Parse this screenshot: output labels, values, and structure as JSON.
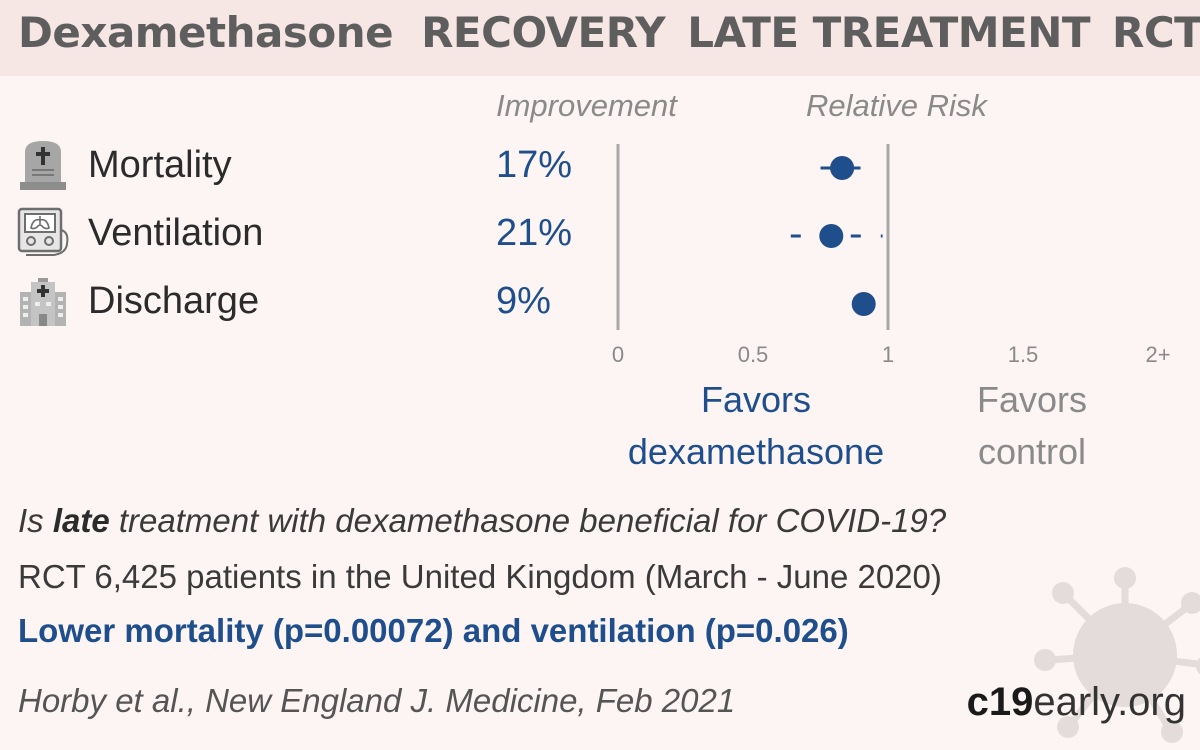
{
  "header": {
    "drug": "Dexamethasone",
    "trial": "RECOVERY",
    "stage": "LATE TREATMENT",
    "design": "RCT"
  },
  "columns": {
    "improvement": "Improvement",
    "relative_risk": "Relative Risk"
  },
  "outcomes": [
    {
      "label": "Mortality",
      "improvement": "17%",
      "icon": "gravestone-icon"
    },
    {
      "label": "Ventilation",
      "improvement": "21%",
      "icon": "ventilator-icon"
    },
    {
      "label": "Discharge",
      "improvement": "9%",
      "icon": "hospital-icon"
    }
  ],
  "chart_data": {
    "type": "scatter",
    "xlabel": "",
    "ylabel": "",
    "xlim": [
      0,
      2
    ],
    "x_ticks": [
      "0",
      "0.5",
      "1",
      "1.5",
      "2+"
    ],
    "x_tick_values": [
      0,
      0.5,
      1,
      1.5,
      2
    ],
    "reference_lines": [
      0,
      1
    ],
    "categories": [
      "Mortality",
      "Ventilation",
      "Discharge"
    ],
    "points": [
      {
        "category": "Mortality",
        "rr": 0.83,
        "ci_low": 0.75,
        "ci_high": 0.93
      },
      {
        "category": "Ventilation",
        "rr": 0.79,
        "ci_low": 0.64,
        "ci_high": 0.98
      },
      {
        "category": "Discharge",
        "rr": 0.91,
        "ci_low": null,
        "ci_high": null
      }
    ],
    "point_color": "#1f4e8c",
    "grid": false
  },
  "favors": {
    "treatment": [
      "Favors",
      "dexamethasone"
    ],
    "control": [
      "Favors",
      "control"
    ]
  },
  "summary": {
    "question_pre": "Is ",
    "question_bold": "late",
    "question_post": " treatment with dexamethasone beneficial for COVID-19?",
    "study": "RCT 6,425 patients in the United Kingdom (March - June 2020)",
    "conclusion": "Lower mortality (p=0.00072) and ventilation (p=0.026)",
    "citation": "Horby et al., New England J. Medicine, Feb 2021"
  },
  "brand": {
    "part1": "c19",
    "part2": "early",
    "part3": ".org"
  },
  "colors": {
    "accent": "#1f4e8c",
    "header_bg": "#f6e6e4",
    "page_bg": "#fcf5f4",
    "muted": "#8a8a8a"
  }
}
